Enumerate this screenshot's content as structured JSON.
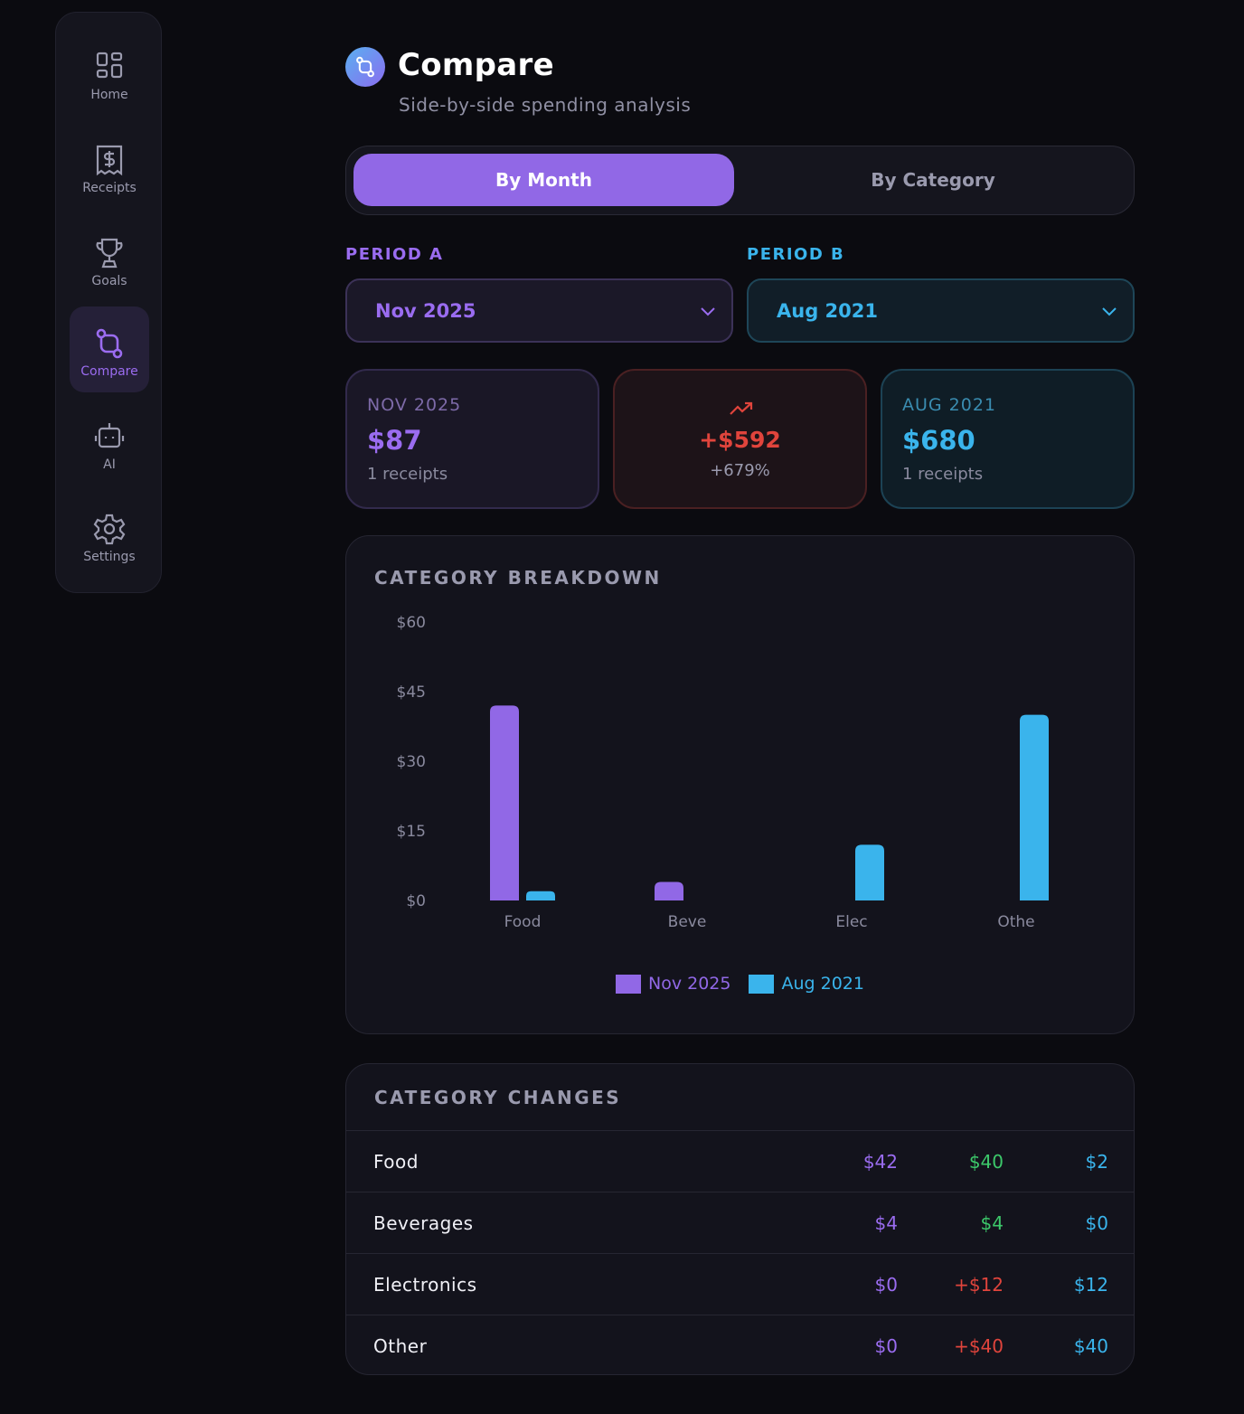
{
  "sidebar": {
    "items": [
      {
        "label": "Home",
        "icon": "grid-icon"
      },
      {
        "label": "Receipts",
        "icon": "receipt-icon"
      },
      {
        "label": "Goals",
        "icon": "trophy-icon"
      },
      {
        "label": "Compare",
        "icon": "compare-icon",
        "active": true
      },
      {
        "label": "AI",
        "icon": "robot-icon"
      },
      {
        "label": "Settings",
        "icon": "gear-icon"
      }
    ]
  },
  "header": {
    "title": "Compare",
    "subtitle": "Side-by-side spending analysis"
  },
  "tabs": {
    "by_month": "By Month",
    "by_category": "By Category"
  },
  "periods": {
    "a_label": "PERIOD A",
    "a_value": "Nov 2025",
    "b_label": "PERIOD B",
    "b_value": "Aug 2021"
  },
  "summary": {
    "a": {
      "period": "NOV 2025",
      "amount": "$87",
      "receipts": "1 receipts"
    },
    "diff": {
      "amount": "+$592",
      "percent": "+679%"
    },
    "b": {
      "period": "AUG 2021",
      "amount": "$680",
      "receipts": "1 receipts"
    }
  },
  "colors": {
    "period_a": "#9168e6",
    "period_b": "#3ab4ec",
    "increase": "#e0443c",
    "decrease": "#3cc86a"
  },
  "chart_data": {
    "type": "bar",
    "title": "CATEGORY BREAKDOWN",
    "categories": [
      "Food",
      "Beve",
      "Elec",
      "Othe"
    ],
    "series": [
      {
        "name": "Nov 2025",
        "values": [
          42,
          4,
          0,
          0
        ]
      },
      {
        "name": "Aug 2021",
        "values": [
          2,
          0,
          12,
          40
        ]
      }
    ],
    "yticks": [
      "$0",
      "$15",
      "$30",
      "$45",
      "$60"
    ],
    "ylim": [
      0,
      60
    ],
    "grid": false,
    "legend": "bottom-center"
  },
  "changes": {
    "title": "CATEGORY CHANGES",
    "rows": [
      {
        "name": "Food",
        "a": "$42",
        "change": "$40",
        "change_kind": "pos",
        "b": "$2"
      },
      {
        "name": "Beverages",
        "a": "$4",
        "change": "$4",
        "change_kind": "pos",
        "b": "$0"
      },
      {
        "name": "Electronics",
        "a": "$0",
        "change": "+$12",
        "change_kind": "neg",
        "b": "$12"
      },
      {
        "name": "Other",
        "a": "$0",
        "change": "+$40",
        "change_kind": "neg",
        "b": "$40"
      }
    ]
  }
}
